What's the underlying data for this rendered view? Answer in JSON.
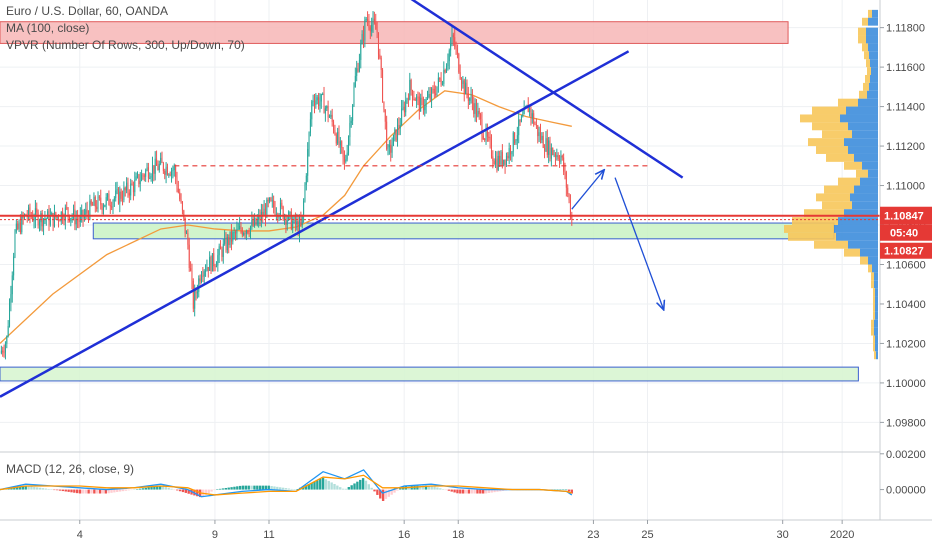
{
  "legend": {
    "symbol": "Euro / U.S. Dollar, 60, OANDA",
    "ma": "MA (100, close)",
    "vpvr": "VPVR (Number Of Rows, 300, Up/Down, 70)",
    "macd": "MACD (12, 26, close, 9)"
  },
  "chart_data": {
    "type": "candlestick",
    "price_axis": {
      "ylim": [
        1.0965,
        1.1194
      ],
      "ticks": [
        "1.11800",
        "1.11600",
        "1.11400",
        "1.11200",
        "1.11000",
        "1.10800",
        "1.10600",
        "1.10400",
        "1.10200",
        "1.10000",
        "1.09800"
      ]
    },
    "macd_axis": {
      "ylim": [
        -0.0017,
        0.0021
      ],
      "ticks": [
        "0.00200",
        "0.00000"
      ]
    },
    "x_axis": {
      "ticks": [
        {
          "label": "4",
          "day": 4
        },
        {
          "label": "9",
          "day": 9
        },
        {
          "label": "11",
          "day": 11
        },
        {
          "label": "16",
          "day": 16
        },
        {
          "label": "18",
          "day": 18
        },
        {
          "label": "23",
          "day": 23
        },
        {
          "label": "25",
          "day": 25
        },
        {
          "label": "30",
          "day": 30
        },
        {
          "label": "2020",
          "day": 32.2
        }
      ],
      "day_range": [
        1.05,
        33.6
      ]
    },
    "price_series": {
      "days": [
        1.05,
        1.3,
        1.6,
        2.0,
        2.5,
        3.0,
        3.5,
        4.0,
        4.5,
        5.0,
        5.5,
        6.0,
        6.5,
        7.0,
        7.5,
        8.0,
        8.2,
        8.5,
        9.0,
        9.5,
        10.0,
        10.5,
        11.0,
        11.4,
        11.8,
        12.2,
        12.6,
        13.0,
        13.4,
        13.8,
        14.2,
        14.6,
        15.0,
        15.4,
        15.8,
        16.2,
        16.6,
        17.0,
        17.4,
        17.8,
        18.2,
        18.6,
        19.0,
        19.4,
        19.8,
        20.2,
        20.6,
        21.0,
        21.4,
        21.8,
        22.0,
        22.2
      ],
      "closes": [
        1.1015,
        1.1022,
        1.1075,
        1.1085,
        1.1084,
        1.1083,
        1.1087,
        1.1082,
        1.109,
        1.1092,
        1.1095,
        1.11,
        1.1108,
        1.111,
        1.1108,
        1.107,
        1.104,
        1.1058,
        1.1062,
        1.1072,
        1.1078,
        1.108,
        1.109,
        1.1088,
        1.1082,
        1.1078,
        1.1145,
        1.1142,
        1.113,
        1.111,
        1.1155,
        1.1185,
        1.1178,
        1.1115,
        1.113,
        1.115,
        1.114,
        1.1145,
        1.1155,
        1.1175,
        1.115,
        1.114,
        1.1125,
        1.1112,
        1.1115,
        1.1128,
        1.114,
        1.1125,
        1.1118,
        1.1115,
        1.11,
        1.1083
      ]
    },
    "ma_series": {
      "name": "MA (100, close)",
      "days": [
        1.05,
        3.0,
        5.0,
        7.0,
        8.0,
        9.0,
        10.0,
        11.0,
        12.0,
        13.0,
        13.8,
        14.5,
        15.5,
        16.5,
        17.5,
        18.5,
        19.5,
        20.5,
        21.5,
        22.2
      ],
      "values": [
        1.102,
        1.1045,
        1.1065,
        1.1078,
        1.108,
        1.1078,
        1.1077,
        1.1077,
        1.1079,
        1.1085,
        1.1095,
        1.111,
        1.1125,
        1.1138,
        1.1148,
        1.1146,
        1.114,
        1.1135,
        1.1132,
        1.113
      ]
    },
    "macd_series": {
      "days": [
        1.05,
        2.0,
        3.0,
        4.0,
        5.0,
        6.0,
        7.0,
        8.0,
        8.5,
        9.0,
        10.0,
        11.0,
        12.0,
        13.0,
        13.8,
        14.5,
        15.2,
        16.0,
        17.0,
        18.0,
        19.0,
        20.0,
        21.0,
        22.0,
        22.2
      ],
      "macd": [
        0.0,
        0.0003,
        0.0002,
        0.0001,
        0.0,
        0.0001,
        0.0003,
        0.0,
        -0.0004,
        -0.0003,
        -0.0001,
        0.0,
        -0.0001,
        0.001,
        0.0006,
        0.0011,
        -0.0002,
        0.0002,
        0.0003,
        0.0001,
        0.0,
        0.0,
        0.0,
        -0.0001,
        -0.0003
      ],
      "signal": [
        0.0,
        0.0002,
        0.0002,
        0.0002,
        0.0001,
        0.0001,
        0.0002,
        0.0001,
        -0.0002,
        -0.0003,
        -0.0002,
        -0.0001,
        -0.0001,
        0.0007,
        0.0006,
        0.0008,
        0.0001,
        0.0001,
        0.0002,
        0.0002,
        0.0001,
        0.0,
        0.0,
        -0.0001,
        -0.0002
      ]
    },
    "zones": [
      {
        "name": "resistance-zone",
        "y": [
          1.1172,
          1.1183
        ],
        "x": [
          1.05,
          30.2
        ],
        "fill": "#f7b6b6",
        "stroke": "#e05a5a"
      },
      {
        "name": "support-zone-upper",
        "y": [
          1.1073,
          1.1081
        ],
        "x": [
          4.5,
          31.9
        ],
        "fill": "#c9f2c3",
        "stroke": "#3a5fd0"
      },
      {
        "name": "support-zone-lower",
        "y": [
          1.1001,
          1.1008
        ],
        "x": [
          1.05,
          32.8
        ],
        "fill": "#d6f4cf",
        "stroke": "#3a5fd0"
      }
    ],
    "trendlines": [
      {
        "name": "ascending-trendline",
        "from": [
          1.05,
          1.0993
        ],
        "to": [
          24.3,
          1.1168
        ],
        "color": "#1f2fd6"
      },
      {
        "name": "descending-trendline",
        "from": [
          16.1,
          1.1196
        ],
        "to": [
          26.3,
          1.1104
        ],
        "color": "#1f2fd6"
      }
    ],
    "dashed_levels": [
      {
        "name": "dashed-resistance-level",
        "y": 1.111,
        "x": [
          7.5,
          25.0
        ],
        "color": "#e53935"
      }
    ],
    "projections": [
      {
        "name": "projection-up-arrow",
        "from": [
          22.2,
          1.1088
        ],
        "to": [
          23.4,
          1.1108
        ]
      },
      {
        "name": "projection-down-arrow",
        "from": [
          23.8,
          1.1104
        ],
        "to": [
          25.6,
          1.1037
        ]
      }
    ],
    "current_price": {
      "value": 1.10847,
      "label": "1.10847",
      "countdown": "05:40",
      "bid_label": "1.10827",
      "bid_value": 1.10827,
      "color": "#e53935"
    },
    "volume_profile": {
      "levels": [
        1.1187,
        1.1183,
        1.1178,
        1.1174,
        1.117,
        1.1166,
        1.1162,
        1.1158,
        1.1154,
        1.115,
        1.1146,
        1.1142,
        1.1138,
        1.1134,
        1.113,
        1.1126,
        1.1122,
        1.1118,
        1.1114,
        1.111,
        1.1106,
        1.1102,
        1.1098,
        1.1094,
        1.109,
        1.1086,
        1.1082,
        1.1078,
        1.1074,
        1.107,
        1.1066,
        1.1062,
        1.1058,
        1.1054,
        1.105,
        1.1046,
        1.1042,
        1.1038,
        1.1034,
        1.103,
        1.1026,
        1.1022,
        1.1018,
        1.1014
      ],
      "up": [
        6,
        10,
        12,
        12,
        10,
        9,
        8,
        7,
        8,
        9,
        11,
        20,
        32,
        38,
        30,
        26,
        34,
        30,
        24,
        16,
        10,
        18,
        24,
        28,
        26,
        34,
        40,
        44,
        42,
        30,
        18,
        10,
        6,
        4,
        4,
        3,
        3,
        3,
        3,
        4,
        4,
        3,
        3,
        2
      ],
      "down": [
        4,
        6,
        8,
        8,
        6,
        5,
        4,
        4,
        5,
        6,
        8,
        20,
        34,
        40,
        36,
        30,
        36,
        32,
        28,
        18,
        12,
        22,
        30,
        34,
        30,
        40,
        46,
        50,
        48,
        34,
        16,
        8,
        4,
        3,
        3,
        2,
        2,
        2,
        2,
        3,
        3,
        2,
        2,
        2
      ],
      "up_color": "#3d8ddc",
      "down_color": "#f7c75a"
    }
  }
}
